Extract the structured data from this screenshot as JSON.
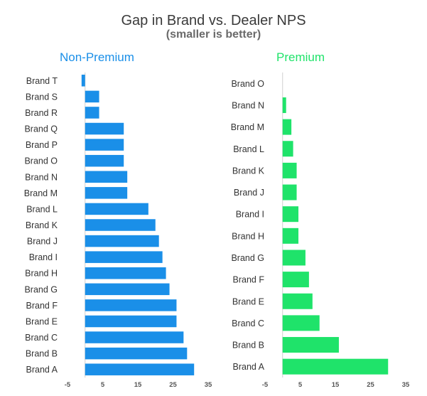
{
  "title": "Gap in Brand vs. Dealer NPS",
  "subtitle": "(smaller is better)",
  "colors": {
    "non_premium": "#1a8fe8",
    "premium": "#1fe36a",
    "axis": "#d0d0d0"
  },
  "chart_data": [
    {
      "type": "bar",
      "orientation": "horizontal",
      "title": "Non-Premium",
      "categories": [
        "Brand T",
        "Brand S",
        "Brand R",
        "Brand Q",
        "Brand P",
        "Brand O",
        "Brand N",
        "Brand M",
        "Brand L",
        "Brand K",
        "Brand J",
        "Brand I",
        "Brand H",
        "Brand G",
        "Brand F",
        "Brand E",
        "Brand C",
        "Brand B",
        "Brand A"
      ],
      "values": [
        -1,
        4,
        4,
        11,
        11,
        11,
        12,
        12,
        18,
        20,
        21,
        22,
        23,
        24,
        26,
        26,
        28,
        29,
        31
      ],
      "xlim": [
        -5,
        35
      ],
      "ticks": [
        -5,
        5,
        15,
        25,
        35
      ],
      "grid": false
    },
    {
      "type": "bar",
      "orientation": "horizontal",
      "title": "Premium",
      "categories": [
        "Brand O",
        "Brand N",
        "Brand M",
        "Brand L",
        "Brand K",
        "Brand J",
        "Brand I",
        "Brand H",
        "Brand G",
        "Brand F",
        "Brand E",
        "Brand C",
        "Brand B",
        "Brand A"
      ],
      "values": [
        0,
        1,
        2.5,
        3,
        4,
        4,
        4.5,
        4.5,
        6.5,
        7.5,
        8.5,
        10.5,
        16,
        30
      ],
      "xlim": [
        -5,
        35
      ],
      "ticks": [
        -5,
        5,
        15,
        25,
        35
      ],
      "grid": false
    }
  ]
}
